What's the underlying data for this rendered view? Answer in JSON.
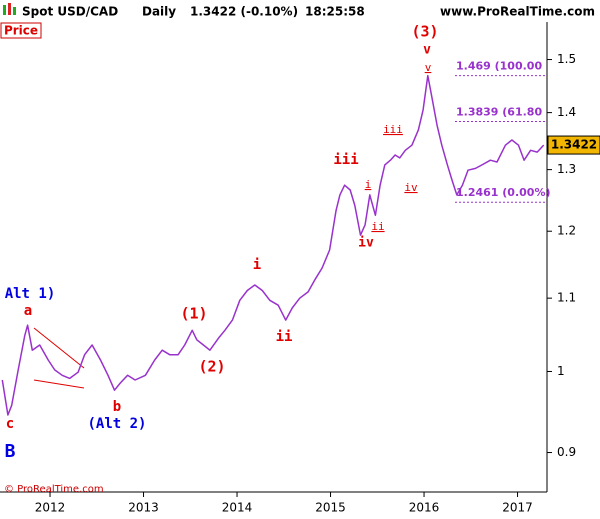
{
  "chart_data": {
    "type": "line",
    "title": "Spot USD/CAD",
    "timeframe": "Daily",
    "quote": "1.3422 (-0.10%)",
    "time": "18:25:58",
    "source": "www.ProRealTime.com",
    "panel_label": "Price",
    "copyright": "© ProRealTime.com",
    "color": "#9932cc",
    "log_scale": true,
    "xlim": [
      2011.465,
      2017.315
    ],
    "xticks": [
      2012,
      2013,
      2014,
      2015,
      2016,
      2017
    ],
    "ylim": [
      0.855,
      1.575
    ],
    "yticks": [
      0.9,
      1,
      1.1,
      1.2,
      1.3,
      1.4,
      1.5
    ],
    "x": [
      2011.49,
      2011.55,
      2011.59,
      2011.66,
      2011.73,
      2011.76,
      2011.81,
      2011.89,
      2011.98,
      2012.05,
      2012.13,
      2012.21,
      2012.3,
      2012.37,
      2012.45,
      2012.54,
      2012.62,
      2012.69,
      2012.75,
      2012.83,
      2012.91,
      2013.02,
      2013.12,
      2013.2,
      2013.28,
      2013.37,
      2013.44,
      2013.52,
      2013.57,
      2013.64,
      2013.71,
      2013.8,
      2013.87,
      2013.95,
      2014.03,
      2014.11,
      2014.19,
      2014.27,
      2014.35,
      2014.44,
      2014.52,
      2014.59,
      2014.67,
      2014.76,
      2014.83,
      2014.91,
      2014.99,
      2015.06,
      2015.1,
      2015.15,
      2015.21,
      2015.26,
      2015.32,
      2015.37,
      2015.42,
      2015.48,
      2015.53,
      2015.58,
      2015.64,
      2015.69,
      2015.74,
      2015.8,
      2015.87,
      2015.94,
      2015.99,
      2016.04,
      2016.08,
      2016.14,
      2016.19,
      2016.25,
      2016.3,
      2016.35,
      2016.41,
      2016.47,
      2016.55,
      2016.62,
      2016.71,
      2016.78,
      2016.87,
      2016.94,
      2017.01,
      2017.07,
      2017.14,
      2017.21,
      2017.28
    ],
    "values": [
      0.989,
      0.945,
      0.957,
      1.002,
      1.048,
      1.062,
      1.028,
      1.035,
      1.015,
      1.002,
      0.995,
      0.991,
      0.999,
      1.022,
      1.035,
      1.015,
      0.995,
      0.976,
      0.985,
      0.995,
      0.989,
      0.995,
      1.015,
      1.028,
      1.022,
      1.022,
      1.035,
      1.055,
      1.042,
      1.035,
      1.028,
      1.044,
      1.055,
      1.069,
      1.097,
      1.111,
      1.119,
      1.111,
      1.097,
      1.09,
      1.069,
      1.086,
      1.1,
      1.109,
      1.126,
      1.144,
      1.171,
      1.233,
      1.258,
      1.274,
      1.266,
      1.241,
      1.194,
      1.21,
      1.258,
      1.225,
      1.274,
      1.308,
      1.316,
      1.325,
      1.32,
      1.333,
      1.342,
      1.369,
      1.405,
      1.469,
      1.432,
      1.377,
      1.342,
      1.308,
      1.282,
      1.258,
      1.274,
      1.299,
      1.302,
      1.308,
      1.316,
      1.313,
      1.342,
      1.351,
      1.342,
      1.316,
      1.333,
      1.33,
      1.3422
    ],
    "last_price": 1.3422,
    "fib_levels": [
      {
        "value": 1.469,
        "label": "1.469 (100.00"
      },
      {
        "value": 1.3839,
        "label": "1.3839 (61.80"
      },
      {
        "value": 1.2461,
        "label": "1.2461 (0.00%)"
      }
    ],
    "annotations": [
      {
        "text": "(3)",
        "color": "#e00000"
      },
      {
        "text": "v",
        "color": "#e00000"
      },
      {
        "text": "v",
        "color": "#e00000"
      },
      {
        "text": "iii",
        "color": "#e00000"
      },
      {
        "text": "iii",
        "color": "#e00000"
      },
      {
        "text": "i",
        "color": "#e00000"
      },
      {
        "text": "ii",
        "color": "#e00000"
      },
      {
        "text": "iv",
        "color": "#e00000"
      },
      {
        "text": "iv",
        "color": "#e00000"
      },
      {
        "text": "i",
        "color": "#e00000"
      },
      {
        "text": "ii",
        "color": "#e00000"
      },
      {
        "text": "(1)",
        "color": "#e00000"
      },
      {
        "text": "(2)",
        "color": "#e00000"
      },
      {
        "text": "a",
        "color": "#e00000"
      },
      {
        "text": "b",
        "color": "#e00000"
      },
      {
        "text": "c",
        "color": "#e00000"
      },
      {
        "text": "Alt 1)",
        "color": "#0000e0"
      },
      {
        "text": "(Alt 2)",
        "color": "#0000e0"
      },
      {
        "text": "B",
        "color": "#0000e0"
      }
    ]
  }
}
